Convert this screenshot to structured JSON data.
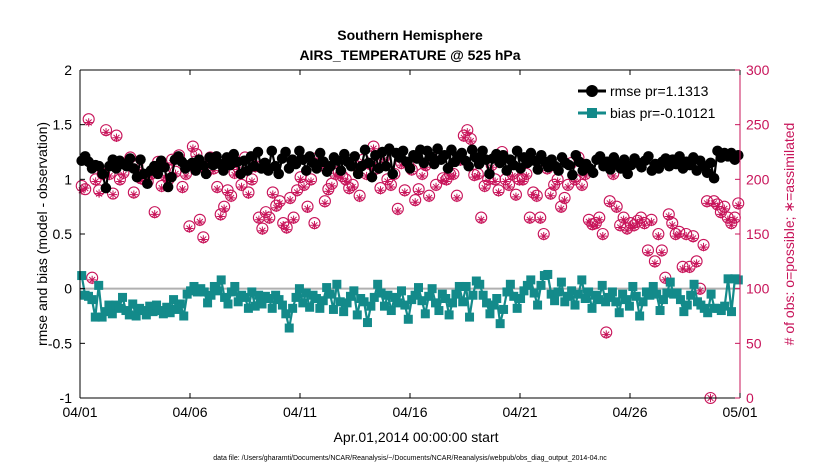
{
  "chart_data": {
    "type": "line",
    "title_line1": "Southern Hemisphere",
    "title_line2": "AIRS_TEMPERATURE @ 525 hPa",
    "xlabel": "Apr.01,2014 00:00:00 start",
    "ylabel_left": "rmse and bias (model - observation)",
    "ylabel_right": "# of obs: o=possible; ∗=assimilated",
    "xlim": [
      0,
      30
    ],
    "ylim_left": [
      -1,
      2
    ],
    "ylim_right": [
      0,
      300
    ],
    "x_ticks": [
      {
        "value": 0,
        "label": "04/01"
      },
      {
        "value": 5,
        "label": "04/06"
      },
      {
        "value": 10,
        "label": "04/11"
      },
      {
        "value": 15,
        "label": "04/16"
      },
      {
        "value": 20,
        "label": "04/21"
      },
      {
        "value": 25,
        "label": "04/26"
      },
      {
        "value": 30,
        "label": "05/01"
      }
    ],
    "y_ticks_left": [
      {
        "value": 2,
        "label": "2"
      },
      {
        "value": 1.5,
        "label": "1.5"
      },
      {
        "value": 1,
        "label": "1"
      },
      {
        "value": 0.5,
        "label": "0.5"
      },
      {
        "value": 0,
        "label": "0"
      },
      {
        "value": -0.5,
        "label": "-0.5"
      },
      {
        "value": -1,
        "label": "-1"
      }
    ],
    "y_ticks_right": [
      {
        "value": 300,
        "label": "300"
      },
      {
        "value": 250,
        "label": "250"
      },
      {
        "value": 200,
        "label": "200"
      },
      {
        "value": 150,
        "label": "150"
      },
      {
        "value": 100,
        "label": "100"
      },
      {
        "value": 50,
        "label": "50"
      },
      {
        "value": 0,
        "label": "0"
      }
    ],
    "zero_line": 0,
    "legend_position": "top-right",
    "series": [
      {
        "name": "rmse pr=1.1313",
        "axis": "left",
        "color": "#000000",
        "marker": "circle",
        "values": [
          1.17,
          1.21,
          1.16,
          1.1,
          1.13,
          1.12,
          1.05,
          0.92,
          1.12,
          1.18,
          1.1,
          1.17,
          1.14,
          1.12,
          1.19,
          1.1,
          1.02,
          1.18,
          1.05,
          0.96,
          1.08,
          1.12,
          1.05,
          1.17,
          1.11,
          0.93,
          1.02,
          1.18,
          1.21,
          1.16,
          1.1,
          1.13,
          1.15,
          1.08,
          1.18,
          1.13,
          1.05,
          1.2,
          1.13,
          1.21,
          1.14,
          1.08,
          1.2,
          1.13,
          1.23,
          1.16,
          1.05,
          1.17,
          1.08,
          1.21,
          1.12,
          1.25,
          1.1,
          1.15,
          1.08,
          1.26,
          1.12,
          1.05,
          1.19,
          1.25,
          1.1,
          1.18,
          1.14,
          1.26,
          1.18,
          1.08,
          1.21,
          1.15,
          1.1,
          1.24,
          1.16,
          1.07,
          1.12,
          1.2,
          1.17,
          1.08,
          1.23,
          1.16,
          1.12,
          1.21,
          1.05,
          1.12,
          1.27,
          1.15,
          1.02,
          1.22,
          1.1,
          1.25,
          1.12,
          1.28,
          1.05,
          1.24,
          1.2,
          1.26,
          1.16,
          1.1,
          1.22,
          1.19,
          1.27,
          1.15,
          1.26,
          1.21,
          1.14,
          1.28,
          1.18,
          1.22,
          1.1,
          1.27,
          1.16,
          1.21,
          1.24,
          1.17,
          1.12,
          1.27,
          1.2,
          1.14,
          1.26,
          1.18,
          1.05,
          1.19,
          1.23,
          1.15,
          1.22,
          1.08,
          1.18,
          1.13,
          1.26,
          1.1,
          1.2,
          1.15,
          1.24,
          1.17,
          1.09,
          1.22,
          1.16,
          1.11,
          1.18,
          1.12,
          1.08,
          1.2,
          1.15,
          1.13,
          1.04,
          1.22,
          1.16,
          1.08,
          1.14,
          1.1,
          1.06,
          1.18,
          1.21,
          1.12,
          1.16,
          1.09,
          1.2,
          1.14,
          1.1,
          1.18,
          1.05,
          1.13,
          1.19,
          1.15,
          1.11,
          1.17,
          1.21,
          1.08,
          1.14,
          1.1,
          1.16,
          1.19,
          1.12,
          1.18,
          1.14,
          1.21,
          1.1,
          1.16,
          1.13,
          1.2,
          1.08,
          1.17,
          1.12,
          1.06,
          1.15,
          1.01,
          1.26,
          1.2,
          1.24,
          1.21,
          1.24,
          1.18,
          1.22
        ]
      },
      {
        "name": "bias pr=-0.10121",
        "axis": "left",
        "color": "#138a8a",
        "marker": "square",
        "values": [
          0.12,
          -0.06,
          -0.07,
          -0.1,
          -0.26,
          0.03,
          -0.26,
          -0.21,
          -0.15,
          -0.23,
          -0.15,
          -0.18,
          -0.08,
          -0.2,
          -0.24,
          -0.14,
          -0.25,
          -0.18,
          -0.2,
          -0.24,
          -0.16,
          -0.21,
          -0.15,
          -0.2,
          -0.23,
          -0.17,
          -0.22,
          -0.1,
          -0.19,
          -0.14,
          -0.25,
          -0.05,
          -0.02,
          0.02,
          -0.03,
          0.0,
          -0.03,
          -0.13,
          -0.06,
          0.02,
          -0.02,
          0.08,
          -0.08,
          -0.14,
          -0.03,
          0.02,
          -0.12,
          -0.06,
          -0.08,
          -0.18,
          -0.03,
          -0.16,
          -0.06,
          -0.14,
          -0.07,
          -0.09,
          -0.18,
          -0.06,
          -0.1,
          -0.15,
          -0.23,
          -0.36,
          -0.18,
          -0.08,
          0.0,
          -0.13,
          -0.04,
          -0.17,
          -0.06,
          -0.09,
          -0.18,
          -0.11,
          0.01,
          -0.05,
          -0.19,
          0.04,
          -0.12,
          -0.21,
          -0.13,
          -0.07,
          -0.02,
          -0.24,
          -0.09,
          -0.12,
          -0.31,
          -0.16,
          -0.08,
          0.04,
          -0.04,
          -0.16,
          -0.06,
          -0.2,
          -0.08,
          -0.13,
          -0.02,
          -0.15,
          -0.28,
          -0.1,
          -0.06,
          0.01,
          -0.11,
          -0.23,
          -0.07,
          0.0,
          -0.13,
          -0.2,
          -0.05,
          -0.09,
          -0.24,
          -0.13,
          -0.05,
          0.02,
          -0.12,
          0.02,
          -0.26,
          -0.06,
          0.07,
          0.04,
          -0.06,
          -0.13,
          -0.23,
          -0.15,
          -0.09,
          -0.32,
          -0.19,
          -0.03,
          0.04,
          -0.07,
          -0.18,
          -0.09,
          -0.02,
          0.03,
          0.08,
          -0.04,
          -0.15,
          0.03,
          0.12,
          0.13,
          -0.05,
          -0.11,
          -0.03,
          0.06,
          -0.12,
          -0.07,
          -0.02,
          -0.15,
          -0.05,
          0.08,
          -0.09,
          -0.03,
          -0.18,
          -0.06,
          -0.1,
          0.03,
          -0.12,
          -0.08,
          -0.03,
          -0.12,
          -0.22,
          -0.05,
          -0.1,
          -0.16,
          0.02,
          -0.07,
          -0.25,
          -0.12,
          -0.03,
          -0.06,
          0.02,
          -0.05,
          -0.2,
          -0.1,
          -0.04,
          0.06,
          -0.05,
          -0.04,
          -0.1,
          -0.21,
          -0.15,
          -0.06,
          0.04,
          -0.12,
          -0.15,
          -0.18,
          -0.22,
          -0.05,
          -0.18,
          -0.18,
          -0.2,
          -0.16,
          0.09,
          -0.21,
          0.09,
          0.08
        ]
      },
      {
        "name": "# possible",
        "axis": "right",
        "color": "#c8145a",
        "marker": "circle-open",
        "values": [
          194,
          191,
          255,
          110,
          200,
          190,
          205,
          245,
          205,
          187,
          240,
          200,
          206,
          215,
          220,
          188,
          213,
          201,
          200,
          198,
          205,
          170,
          216,
          194,
          204,
          200,
          218,
          207,
          222,
          193,
          205,
          157,
          230,
          223,
          163,
          147,
          207,
          220,
          210,
          193,
          168,
          175,
          190,
          185,
          206,
          211,
          195,
          220,
          188,
          200,
          212,
          165,
          155,
          170,
          165,
          188,
          176,
          180,
          160,
          156,
          183,
          165,
          190,
          202,
          195,
          175,
          200,
          160,
          220,
          213,
          180,
          191,
          196,
          205,
          207,
          203,
          200,
          192,
          195,
          212,
          185,
          218,
          205,
          214,
          230,
          210,
          192,
          220,
          200,
          195,
          205,
          173,
          215,
          190,
          215,
          209,
          181,
          191,
          205,
          213,
          185,
          218,
          195,
          220,
          201,
          200,
          205,
          205,
          185,
          218,
          240,
          245,
          237,
          204,
          205,
          165,
          194,
          200,
          213,
          200,
          190,
          225,
          200,
          195,
          205,
          186,
          200,
          200,
          205,
          165,
          188,
          185,
          165,
          150,
          210,
          187,
          195,
          200,
          175,
          183,
          195,
          215,
          200,
          220,
          195,
          205,
          163,
          159,
          160,
          165,
          150,
          60,
          180,
          205,
          175,
          158,
          165,
          155,
          160,
          158,
          162,
          165,
          160,
          135,
          163,
          125,
          150,
          135,
          110,
          168,
          160,
          150,
          152,
          120,
          150,
          120,
          148,
          125,
          100,
          140,
          180,
          0,
          180,
          177,
          170,
          175,
          165,
          160,
          165,
          178
        ]
      },
      {
        "name": "# assimilated",
        "axis": "right",
        "color": "#c8145a",
        "marker": "star",
        "values": [
          190,
          192,
          252,
          108,
          198,
          187,
          203,
          243,
          203,
          186,
          238,
          198,
          204,
          212,
          218,
          186,
          211,
          199,
          198,
          197,
          203,
          168,
          214,
          192,
          202,
          198,
          215,
          205,
          220,
          191,
          203,
          155,
          228,
          221,
          161,
          145,
          205,
          218,
          208,
          191,
          166,
          173,
          188,
          183,
          204,
          209,
          193,
          218,
          186,
          198,
          210,
          163,
          153,
          168,
          163,
          186,
          174,
          178,
          158,
          154,
          181,
          163,
          188,
          200,
          193,
          173,
          198,
          158,
          218,
          211,
          178,
          189,
          194,
          203,
          205,
          201,
          198,
          190,
          193,
          210,
          183,
          216,
          203,
          212,
          228,
          208,
          190,
          218,
          198,
          193,
          203,
          171,
          213,
          188,
          213,
          207,
          179,
          189,
          203,
          211,
          183,
          216,
          193,
          218,
          199,
          198,
          203,
          203,
          183,
          216,
          238,
          243,
          235,
          202,
          203,
          163,
          192,
          198,
          211,
          198,
          188,
          223,
          198,
          193,
          203,
          184,
          198,
          198,
          203,
          163,
          186,
          183,
          163,
          148,
          208,
          185,
          193,
          198,
          173,
          181,
          193,
          213,
          198,
          218,
          193,
          203,
          161,
          157,
          158,
          163,
          148,
          58,
          178,
          203,
          173,
          156,
          163,
          153,
          158,
          156,
          160,
          163,
          158,
          133,
          161,
          123,
          148,
          133,
          108,
          166,
          158,
          148,
          150,
          118,
          148,
          118,
          146,
          123,
          98,
          138,
          178,
          0,
          178,
          175,
          168,
          173,
          163,
          158,
          163,
          176
        ]
      }
    ],
    "footnote": "data file: /Users/gharamti/Documents/NCAR/Reanalysis/~/Documents/NCAR/Reanalysis/webpub/obs_diag_output_2014-04.nc"
  }
}
